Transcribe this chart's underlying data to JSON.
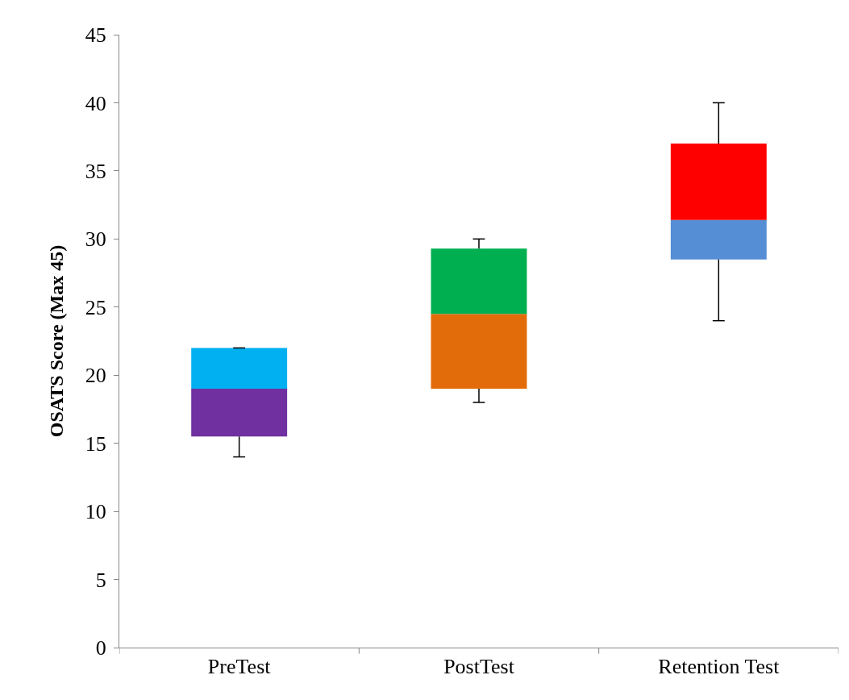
{
  "chart_data": {
    "type": "box",
    "ylabel": "OSATS Score (Max 45)",
    "categories": [
      "PreTest",
      "PostTest",
      "Retention Test"
    ],
    "boxes": [
      {
        "low": 14,
        "q1": 15.5,
        "median": 19,
        "q3": 22,
        "high": 22
      },
      {
        "low": 18,
        "q1": 19,
        "median": 24.5,
        "q3": 29.3,
        "high": 30
      },
      {
        "low": 24,
        "q1": 28.5,
        "median": 31.4,
        "q3": 37,
        "high": 40
      }
    ],
    "colors": [
      [
        "#7030a0",
        "#00b0f0"
      ],
      [
        "#e36c0a",
        "#00b050"
      ],
      [
        "#558ed5",
        "#ff0000"
      ]
    ],
    "ylim": [
      0,
      45
    ],
    "yticks": [
      0,
      5,
      10,
      15,
      20,
      25,
      30,
      35,
      40,
      45
    ]
  }
}
